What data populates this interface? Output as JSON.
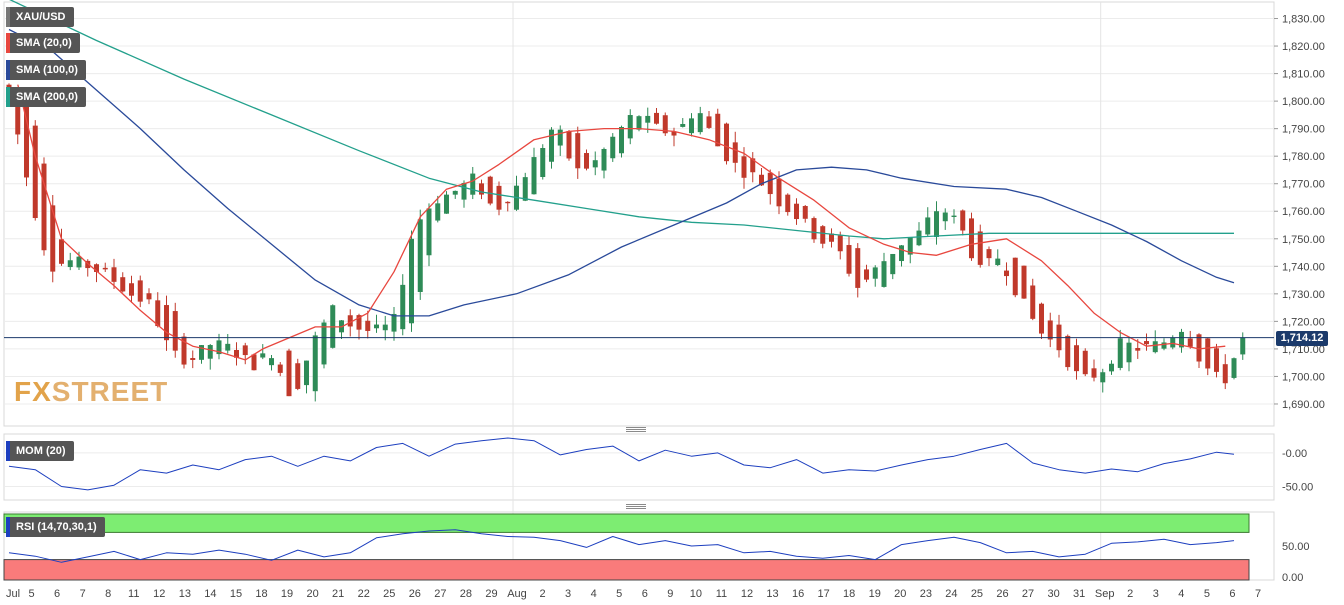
{
  "chart_data": {
    "type": "candlestick",
    "symbol": "XAU/USD",
    "last_price": "1,714.12",
    "indicators": {
      "sma20_label": "SMA (20,0)",
      "sma100_label": "SMA (100,0)",
      "sma200_label": "SMA (200,0)",
      "mom_label": "MOM (20)",
      "rsi_label": "RSI (14,70,30,1)"
    },
    "colors": {
      "up": "#2e8b57",
      "down": "#c0392b",
      "sma20": "#e8473f",
      "sma100": "#2a4a9a",
      "sma200": "#23a08c",
      "mom": "#1d3fbf",
      "rsi": "#1d3fbf",
      "rsi_overbought": "#7ded72",
      "rsi_oversold": "#f97b7b",
      "last_price_line": "#1b3a6b"
    },
    "price_axis": {
      "ylim": [
        1682,
        1836
      ],
      "ticks": [
        "1,830.00",
        "1,820.00",
        "1,810.00",
        "1,800.00",
        "1,790.00",
        "1,780.00",
        "1,770.00",
        "1,760.00",
        "1,750.00",
        "1,740.00",
        "1,730.00",
        "1,720.00",
        "1,710.00",
        "1,700.00",
        "1,690.00"
      ]
    },
    "mom_axis": {
      "ylim": [
        -70,
        28
      ],
      "ticks": [
        "-0.00",
        "-50.00"
      ]
    },
    "rsi_axis": {
      "ylim": [
        0,
        100
      ],
      "ticks": [
        "50.00",
        "0.00"
      ],
      "overbought": 70,
      "oversold": 30
    },
    "x_labels": [
      "Jul",
      "5",
      "6",
      "7",
      "8",
      "11",
      "12",
      "13",
      "14",
      "15",
      "18",
      "19",
      "20",
      "21",
      "22",
      "25",
      "26",
      "27",
      "28",
      "29",
      "Aug",
      "2",
      "3",
      "4",
      "5",
      "6",
      "9",
      "10",
      "11",
      "12",
      "13",
      "16",
      "17",
      "18",
      "19",
      "20",
      "23",
      "24",
      "25",
      "26",
      "27",
      "30",
      "31",
      "Sep",
      "2",
      "3",
      "4",
      "5",
      "6",
      "7"
    ],
    "ohlc_anchors": [
      [
        1806,
        1806,
        1798,
        1803
      ],
      [
        1800,
        1803,
        1758,
        1768
      ],
      [
        1768,
        1772,
        1733,
        1740
      ],
      [
        1740,
        1746,
        1736,
        1742
      ],
      [
        1742,
        1745,
        1736,
        1740
      ],
      [
        1740,
        1743,
        1733,
        1736
      ],
      [
        1736,
        1740,
        1725,
        1730
      ],
      [
        1730,
        1745,
        1708,
        1726
      ],
      [
        1726,
        1732,
        1700,
        1708
      ],
      [
        1708,
        1714,
        1698,
        1706
      ],
      [
        1706,
        1718,
        1702,
        1712
      ],
      [
        1712,
        1722,
        1705,
        1710
      ],
      [
        1710,
        1714,
        1701,
        1704
      ],
      [
        1704,
        1713,
        1702,
        1709
      ],
      [
        1709,
        1712,
        1684,
        1692
      ],
      [
        1692,
        1716,
        1688,
        1712
      ],
      [
        1712,
        1728,
        1708,
        1724
      ],
      [
        1724,
        1730,
        1713,
        1718
      ],
      [
        1718,
        1724,
        1712,
        1716
      ],
      [
        1716,
        1722,
        1713,
        1719
      ],
      [
        1719,
        1758,
        1716,
        1754
      ],
      [
        1754,
        1768,
        1748,
        1764
      ],
      [
        1764,
        1770,
        1758,
        1767
      ],
      [
        1767,
        1776,
        1760,
        1772
      ],
      [
        1772,
        1786,
        1756,
        1760
      ],
      [
        1760,
        1772,
        1754,
        1768
      ],
      [
        1768,
        1782,
        1765,
        1779
      ],
      [
        1779,
        1796,
        1774,
        1792
      ],
      [
        1792,
        1794,
        1768,
        1774
      ],
      [
        1774,
        1780,
        1770,
        1778
      ],
      [
        1778,
        1792,
        1774,
        1788
      ],
      [
        1788,
        1800,
        1784,
        1796
      ],
      [
        1796,
        1808,
        1784,
        1790
      ],
      [
        1790,
        1794,
        1784,
        1788
      ],
      [
        1788,
        1800,
        1785,
        1798
      ],
      [
        1798,
        1804,
        1780,
        1784
      ],
      [
        1784,
        1788,
        1772,
        1776
      ],
      [
        1776,
        1782,
        1768,
        1772
      ],
      [
        1772,
        1780,
        1760,
        1764
      ],
      [
        1764,
        1772,
        1756,
        1758
      ],
      [
        1758,
        1762,
        1748,
        1750
      ],
      [
        1750,
        1754,
        1740,
        1746
      ],
      [
        1746,
        1750,
        1728,
        1732
      ],
      [
        1732,
        1744,
        1728,
        1740
      ],
      [
        1740,
        1752,
        1736,
        1748
      ],
      [
        1748,
        1756,
        1742,
        1752
      ],
      [
        1752,
        1766,
        1748,
        1762
      ],
      [
        1762,
        1766,
        1752,
        1755
      ],
      [
        1755,
        1760,
        1734,
        1738
      ],
      [
        1738,
        1746,
        1732,
        1744
      ],
      [
        1744,
        1748,
        1722,
        1728
      ],
      [
        1728,
        1732,
        1714,
        1716
      ],
      [
        1716,
        1722,
        1708,
        1710
      ],
      [
        1710,
        1712,
        1694,
        1698
      ],
      [
        1698,
        1706,
        1690,
        1702
      ],
      [
        1702,
        1714,
        1698,
        1712
      ],
      [
        1712,
        1720,
        1705,
        1710
      ],
      [
        1710,
        1714,
        1706,
        1712
      ],
      [
        1712,
        1727,
        1708,
        1718
      ],
      [
        1718,
        1722,
        1703,
        1705
      ],
      [
        1705,
        1708,
        1692,
        1697
      ],
      [
        1697,
        1716,
        1696,
        1714.12
      ]
    ],
    "sma20": [
      [
        1,
        1806
      ],
      [
        3,
        1780
      ],
      [
        6,
        1750
      ],
      [
        9,
        1741
      ],
      [
        12,
        1733
      ],
      [
        15,
        1724
      ],
      [
        18,
        1716
      ],
      [
        21,
        1711
      ],
      [
        24,
        1709
      ],
      [
        27,
        1706
      ],
      [
        29,
        1710
      ],
      [
        32,
        1714
      ],
      [
        35,
        1718
      ],
      [
        38,
        1718
      ],
      [
        41,
        1723
      ],
      [
        44,
        1738
      ],
      [
        47,
        1758
      ],
      [
        50,
        1768
      ],
      [
        53,
        1771
      ],
      [
        56,
        1777
      ],
      [
        60,
        1786
      ],
      [
        64,
        1789
      ],
      [
        68,
        1790
      ],
      [
        72,
        1790
      ],
      [
        76,
        1789
      ],
      [
        80,
        1786
      ],
      [
        84,
        1781
      ],
      [
        88,
        1772
      ],
      [
        92,
        1764
      ],
      [
        96,
        1754
      ],
      [
        100,
        1748
      ],
      [
        103,
        1745
      ],
      [
        106,
        1744
      ],
      [
        110,
        1748
      ],
      [
        114,
        1750
      ],
      [
        118,
        1742
      ],
      [
        121,
        1733
      ],
      [
        124,
        1723
      ],
      [
        127,
        1716
      ],
      [
        130,
        1711
      ],
      [
        133,
        1712
      ],
      [
        136,
        1710
      ],
      [
        139,
        1711
      ]
    ],
    "sma100": [
      [
        0,
        1826
      ],
      [
        5,
        1818
      ],
      [
        10,
        1804
      ],
      [
        15,
        1790
      ],
      [
        20,
        1775
      ],
      [
        25,
        1761
      ],
      [
        30,
        1748
      ],
      [
        35,
        1735
      ],
      [
        40,
        1726
      ],
      [
        44,
        1722
      ],
      [
        48,
        1722
      ],
      [
        52,
        1726
      ],
      [
        58,
        1730
      ],
      [
        64,
        1737
      ],
      [
        70,
        1747
      ],
      [
        76,
        1755
      ],
      [
        82,
        1763
      ],
      [
        86,
        1770
      ],
      [
        90,
        1775
      ],
      [
        94,
        1776
      ],
      [
        98,
        1775
      ],
      [
        102,
        1772
      ],
      [
        108,
        1769
      ],
      [
        114,
        1768
      ],
      [
        118,
        1765
      ],
      [
        122,
        1760
      ],
      [
        126,
        1755
      ],
      [
        130,
        1749
      ],
      [
        134,
        1742
      ],
      [
        138,
        1736
      ],
      [
        140,
        1734
      ]
    ],
    "sma200": [
      [
        0,
        1837
      ],
      [
        10,
        1822
      ],
      [
        20,
        1808
      ],
      [
        30,
        1795
      ],
      [
        40,
        1782
      ],
      [
        48,
        1772
      ],
      [
        54,
        1767
      ],
      [
        60,
        1764
      ],
      [
        66,
        1761
      ],
      [
        72,
        1758
      ],
      [
        78,
        1756
      ],
      [
        84,
        1755
      ],
      [
        90,
        1753
      ],
      [
        96,
        1751
      ],
      [
        100,
        1750
      ],
      [
        106,
        1751
      ],
      [
        112,
        1752
      ],
      [
        118,
        1752
      ],
      [
        124,
        1752
      ],
      [
        130,
        1752
      ],
      [
        136,
        1752
      ],
      [
        140,
        1752
      ]
    ],
    "mom": [
      [
        0,
        -20
      ],
      [
        3,
        -25
      ],
      [
        6,
        -50
      ],
      [
        9,
        -55
      ],
      [
        12,
        -48
      ],
      [
        15,
        -25
      ],
      [
        18,
        -30
      ],
      [
        21,
        -18
      ],
      [
        24,
        -25
      ],
      [
        27,
        -10
      ],
      [
        30,
        -5
      ],
      [
        33,
        -20
      ],
      [
        36,
        -5
      ],
      [
        39,
        -12
      ],
      [
        42,
        8
      ],
      [
        45,
        14
      ],
      [
        48,
        -5
      ],
      [
        51,
        13
      ],
      [
        54,
        18
      ],
      [
        57,
        22
      ],
      [
        60,
        18
      ],
      [
        63,
        -3
      ],
      [
        66,
        5
      ],
      [
        69,
        10
      ],
      [
        72,
        -12
      ],
      [
        75,
        4
      ],
      [
        78,
        -5
      ],
      [
        81,
        0
      ],
      [
        84,
        -18
      ],
      [
        87,
        -22
      ],
      [
        90,
        -10
      ],
      [
        93,
        -30
      ],
      [
        96,
        -25
      ],
      [
        99,
        -27
      ],
      [
        102,
        -18
      ],
      [
        105,
        -10
      ],
      [
        108,
        -5
      ],
      [
        111,
        5
      ],
      [
        114,
        14
      ],
      [
        117,
        -15
      ],
      [
        120,
        -25
      ],
      [
        123,
        -30
      ],
      [
        126,
        -24
      ],
      [
        129,
        -28
      ],
      [
        132,
        -16
      ],
      [
        135,
        -9
      ],
      [
        138,
        1
      ],
      [
        140,
        -2
      ]
    ],
    "rsi": [
      [
        0,
        40
      ],
      [
        3,
        35
      ],
      [
        6,
        26
      ],
      [
        9,
        34
      ],
      [
        12,
        42
      ],
      [
        15,
        30
      ],
      [
        18,
        40
      ],
      [
        21,
        38
      ],
      [
        24,
        44
      ],
      [
        27,
        38
      ],
      [
        30,
        29
      ],
      [
        33,
        44
      ],
      [
        36,
        34
      ],
      [
        39,
        40
      ],
      [
        42,
        62
      ],
      [
        45,
        68
      ],
      [
        48,
        72
      ],
      [
        51,
        74
      ],
      [
        54,
        68
      ],
      [
        57,
        64
      ],
      [
        60,
        63
      ],
      [
        63,
        58
      ],
      [
        66,
        48
      ],
      [
        69,
        64
      ],
      [
        72,
        52
      ],
      [
        75,
        58
      ],
      [
        78,
        50
      ],
      [
        81,
        52
      ],
      [
        84,
        40
      ],
      [
        87,
        42
      ],
      [
        90,
        35
      ],
      [
        93,
        32
      ],
      [
        96,
        36
      ],
      [
        99,
        30
      ],
      [
        102,
        52
      ],
      [
        105,
        58
      ],
      [
        108,
        63
      ],
      [
        111,
        55
      ],
      [
        114,
        40
      ],
      [
        117,
        42
      ],
      [
        120,
        34
      ],
      [
        123,
        38
      ],
      [
        126,
        54
      ],
      [
        129,
        56
      ],
      [
        132,
        60
      ],
      [
        135,
        52
      ],
      [
        138,
        55
      ],
      [
        140,
        58
      ]
    ]
  }
}
